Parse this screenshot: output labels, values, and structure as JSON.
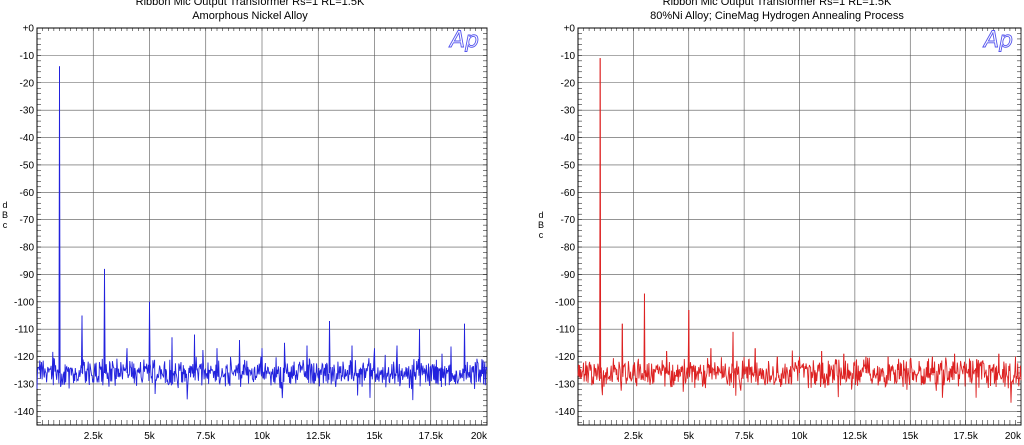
{
  "chart_data": [
    {
      "type": "line",
      "title": "Ribbon Mic Output Transformer   Rs=1 RL=1.5K",
      "subtitle": "Amorphous Nickel Alloy",
      "ylabel": "d B c",
      "logo": "Ap",
      "color": "#2222dd",
      "xlim": [
        0,
        20000
      ],
      "ylim": [
        -145,
        0
      ],
      "yticks": [
        "+0",
        "-10",
        "-20",
        "-30",
        "-40",
        "-50",
        "-60",
        "-70",
        "-80",
        "-90",
        "-100",
        "-110",
        "-120",
        "-130",
        "-140"
      ],
      "xticks": [
        "2.5k",
        "5k",
        "7.5k",
        "10k",
        "12.5k",
        "15k",
        "17.5k",
        "20k"
      ],
      "grid": true,
      "noise_floor": -126,
      "peaks": [
        {
          "x": 1000,
          "y": -14
        },
        {
          "x": 2000,
          "y": -105
        },
        {
          "x": 3000,
          "y": -88
        },
        {
          "x": 4000,
          "y": -117
        },
        {
          "x": 5000,
          "y": -100
        },
        {
          "x": 6000,
          "y": -113
        },
        {
          "x": 7000,
          "y": -112
        },
        {
          "x": 8000,
          "y": -117
        },
        {
          "x": 9000,
          "y": -114
        },
        {
          "x": 10000,
          "y": -117
        },
        {
          "x": 11000,
          "y": -115
        },
        {
          "x": 12000,
          "y": -116
        },
        {
          "x": 13000,
          "y": -107
        },
        {
          "x": 14000,
          "y": -116
        },
        {
          "x": 15000,
          "y": -117
        },
        {
          "x": 16000,
          "y": -116
        },
        {
          "x": 17000,
          "y": -110
        },
        {
          "x": 18000,
          "y": -119
        },
        {
          "x": 19000,
          "y": -108
        }
      ]
    },
    {
      "type": "line",
      "title": "Ribbon Mic Output Transformer   Rs=1 RL=1.5K",
      "subtitle": "80%Ni Alloy; CineMag Hydrogen Annealing Process",
      "ylabel": "d B c",
      "logo": "Ap",
      "color": "#dd2222",
      "xlim": [
        0,
        20000
      ],
      "ylim": [
        -145,
        0
      ],
      "yticks": [
        "+0",
        "-10",
        "-20",
        "-30",
        "-40",
        "-50",
        "-60",
        "-70",
        "-80",
        "-90",
        "-100",
        "-110",
        "-120",
        "-130",
        "-140"
      ],
      "xticks": [
        "2.5k",
        "5k",
        "7.5k",
        "10k",
        "12.5k",
        "15k",
        "17.5k",
        "20k"
      ],
      "grid": true,
      "noise_floor": -126,
      "peaks": [
        {
          "x": 1000,
          "y": -11
        },
        {
          "x": 2000,
          "y": -108
        },
        {
          "x": 3000,
          "y": -97
        },
        {
          "x": 4000,
          "y": -118
        },
        {
          "x": 5000,
          "y": -103
        },
        {
          "x": 6000,
          "y": -117
        },
        {
          "x": 7000,
          "y": -111
        },
        {
          "x": 8000,
          "y": -117
        },
        {
          "x": 9000,
          "y": -120
        },
        {
          "x": 10000,
          "y": -120
        },
        {
          "x": 11000,
          "y": -118
        },
        {
          "x": 12000,
          "y": -119
        },
        {
          "x": 13000,
          "y": -120
        },
        {
          "x": 14000,
          "y": -120
        },
        {
          "x": 15000,
          "y": -121
        },
        {
          "x": 16000,
          "y": -120
        },
        {
          "x": 17000,
          "y": -119
        },
        {
          "x": 18000,
          "y": -121
        },
        {
          "x": 19000,
          "y": -119
        }
      ]
    }
  ]
}
